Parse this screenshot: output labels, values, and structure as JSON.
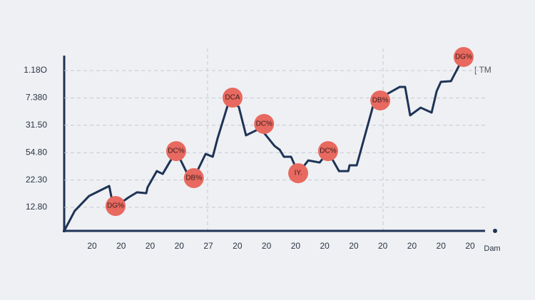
{
  "chart_data": {
    "type": "line",
    "y_labels": [
      "1.18O",
      "7.380",
      "31.50",
      "54.80",
      "22.30",
      "12.80"
    ],
    "x_labels": [
      "20",
      "20",
      "20",
      "20",
      "27",
      "20",
      "20",
      "20",
      "20",
      "20",
      "20",
      "20",
      "20",
      "20"
    ],
    "x_axis_label": "Dam",
    "legend_text": "[ TM",
    "xlim": [
      0,
      100
    ],
    "ylim": [
      0,
      100
    ],
    "color": "#1e3356",
    "marker_color": "#e8695f",
    "x": [
      0,
      2.5,
      5.9,
      10.7,
      11.5,
      12.7,
      15.3,
      17.3,
      19.5,
      19.8,
      22.0,
      23.4,
      26.6,
      29.2,
      30.8,
      33.6,
      35.3,
      36.4,
      39.3,
      41.5,
      43.2,
      46.6,
      50.0,
      51.2,
      52.2,
      53.9,
      55.6,
      58.0,
      60.7,
      62.7,
      65.3,
      67.5,
      67.8,
      69.5,
      73.7,
      79.7,
      81.0,
      82.2,
      84.7,
      87.3,
      88.5,
      89.5,
      91.9,
      94.9
    ],
    "values": [
      0,
      11.4,
      19.9,
      25.6,
      15.9,
      14.6,
      19.1,
      22.0,
      21.5,
      24.8,
      34.1,
      32.5,
      45.5,
      32.9,
      30.1,
      43.9,
      42.3,
      52.4,
      75.2,
      70.7,
      54.5,
      58.5,
      48.4,
      46.3,
      42.3,
      42.3,
      32.9,
      40.2,
      39.0,
      45.1,
      34.1,
      34.1,
      37.4,
      37.4,
      74.0,
      82.1,
      82.1,
      65.9,
      70.3,
      67.5,
      79.7,
      85.0,
      85.4,
      99.2
    ],
    "annotations": [
      {
        "text": "DG%",
        "x": 12.2,
        "y": 14.2
      },
      {
        "text": "DC%",
        "x": 26.6,
        "y": 45.5
      },
      {
        "text": "DB%",
        "x": 30.8,
        "y": 30.1
      },
      {
        "text": "DCA",
        "x": 40.0,
        "y": 76.0
      },
      {
        "text": "DC%",
        "x": 47.5,
        "y": 61.0
      },
      {
        "text": "IY.",
        "x": 55.6,
        "y": 32.9
      },
      {
        "text": "DC%",
        "x": 62.7,
        "y": 45.5
      },
      {
        "text": "DB%",
        "x": 75.1,
        "y": 74.4
      },
      {
        "text": "DG%",
        "x": 94.9,
        "y": 99.2
      }
    ]
  }
}
